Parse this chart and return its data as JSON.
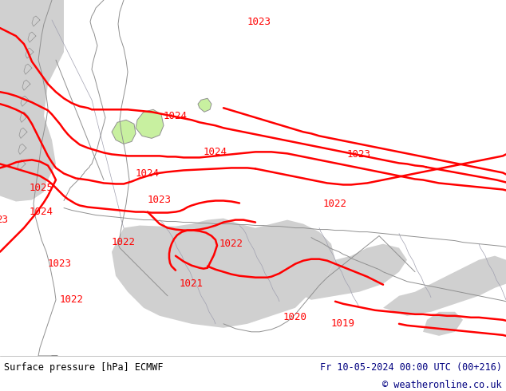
{
  "footer_left": "Surface pressure [hPa] ECMWF",
  "footer_right": "Fr 10-05-2024 00:00 UTC (00+216)",
  "footer_copyright": "© weatheronline.co.uk",
  "land_color": "#c8f0a0",
  "sea_color": "#d0d0d0",
  "isobar_color": "#ff0000",
  "coastline_color": "#909090",
  "border_color": "#a0a0b0",
  "text_color": "#000080",
  "footer_bg": "#ffffff",
  "figsize": [
    6.34,
    4.9
  ],
  "dpi": 100
}
